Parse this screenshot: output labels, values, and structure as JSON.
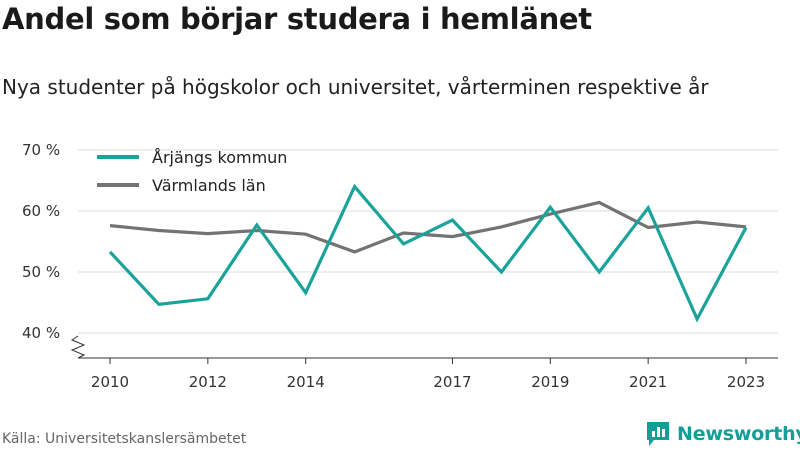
{
  "title": "Andel som börjar studera i hemlänet",
  "subtitle": "Nya studenter på högskolor och universitet, vårterminen respektive år",
  "source": "Källa: Universitetskanslersämbetet",
  "brand": "Newsworthy",
  "colors": {
    "series1": "#1aa39a",
    "series2": "#737373",
    "grid": "#dddddd",
    "axis": "#333333",
    "brand": "#119f98"
  },
  "chart_data": {
    "type": "line",
    "y_ticks": [
      40,
      50,
      60,
      70
    ],
    "y_tick_labels": [
      "40 %",
      "50 %",
      "60 %",
      "70 %"
    ],
    "x_ticks": [
      2010,
      2012,
      2014,
      2017,
      2019,
      2021,
      2023
    ],
    "x_tick_labels": [
      "2010",
      "2012",
      "2014",
      "2017",
      "2019",
      "2021",
      "2023"
    ],
    "xlim": [
      2010,
      2023
    ],
    "ylim": [
      40,
      70
    ],
    "y_axis_break": true,
    "grid": "horizontal",
    "legend_position": "top-left",
    "x": [
      2010,
      2011,
      2012,
      2013,
      2014,
      2015,
      2016,
      2017,
      2018,
      2019,
      2020,
      2021,
      2022,
      2023
    ],
    "series": [
      {
        "name": "Årjängs kommun",
        "color": "#1aa39a",
        "values": [
          53.3,
          44.7,
          45.6,
          57.7,
          46.6,
          64.0,
          54.6,
          58.5,
          50.0,
          60.6,
          50.0,
          60.5,
          42.3,
          57.3
        ]
      },
      {
        "name": "Värmlands län",
        "color": "#737373",
        "values": [
          57.6,
          56.8,
          56.3,
          56.8,
          56.2,
          53.3,
          56.4,
          55.8,
          57.4,
          59.5,
          61.4,
          57.3,
          58.2,
          57.4
        ]
      }
    ]
  }
}
